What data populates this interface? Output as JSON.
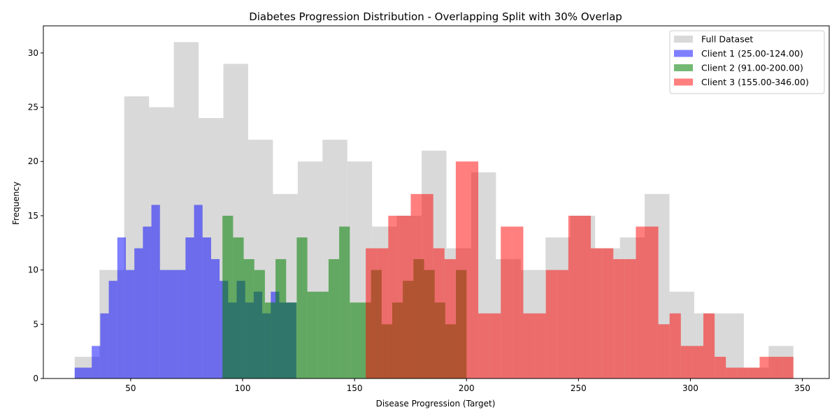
{
  "chart_data": {
    "type": "bar",
    "title": "Diabetes Progression Distribution - Overlapping Split with 30% Overlap",
    "xlabel": "Disease Progression (Target)",
    "ylabel": "Frequency",
    "xlim": [
      11,
      362
    ],
    "ylim": [
      0,
      32.5
    ],
    "xticks": [
      50,
      100,
      150,
      200,
      250,
      300,
      350
    ],
    "yticks": [
      0,
      5,
      10,
      15,
      20,
      25,
      30
    ],
    "legend_position": "top-right",
    "series": [
      {
        "name": "Full Dataset",
        "color": "#bfbfbf",
        "opacity": 0.6,
        "range": [
          25,
          346
        ],
        "values": [
          2,
          10,
          26,
          25,
          31,
          24,
          29,
          22,
          17,
          20,
          22,
          20,
          14,
          15,
          21,
          12,
          19,
          11,
          10,
          13,
          15,
          12,
          13,
          17,
          8,
          6,
          6,
          1,
          3
        ]
      },
      {
        "name": "Client 1 (25.00-124.00)",
        "color": "#0000ff",
        "opacity": 0.5,
        "range": [
          25,
          124
        ],
        "values": [
          1,
          1,
          3,
          6,
          9,
          13,
          10,
          12,
          14,
          16,
          10,
          10,
          10,
          13,
          16,
          13,
          11,
          9,
          7,
          9,
          7,
          8,
          6,
          8,
          7,
          7
        ]
      },
      {
        "name": "Client 2 (91.00-200.00)",
        "color": "#008000",
        "opacity": 0.55,
        "range": [
          91,
          200
        ],
        "values": [
          15,
          13,
          11,
          10,
          7,
          11,
          7,
          13,
          8,
          8,
          11,
          14,
          7,
          7,
          10,
          5,
          7,
          9,
          11,
          10,
          7,
          5,
          10
        ]
      },
      {
        "name": "Client 3 (155.00-346.00)",
        "color": "#ff0000",
        "opacity": 0.5,
        "range": [
          155,
          346
        ],
        "values": [
          12,
          12,
          15,
          15,
          17,
          17,
          12,
          11,
          20,
          20,
          6,
          6,
          14,
          14,
          6,
          6,
          10,
          10,
          15,
          15,
          12,
          12,
          11,
          11,
          14,
          14,
          5,
          6,
          3,
          3,
          6,
          2,
          1,
          1,
          1,
          2,
          2,
          2
        ]
      }
    ]
  }
}
